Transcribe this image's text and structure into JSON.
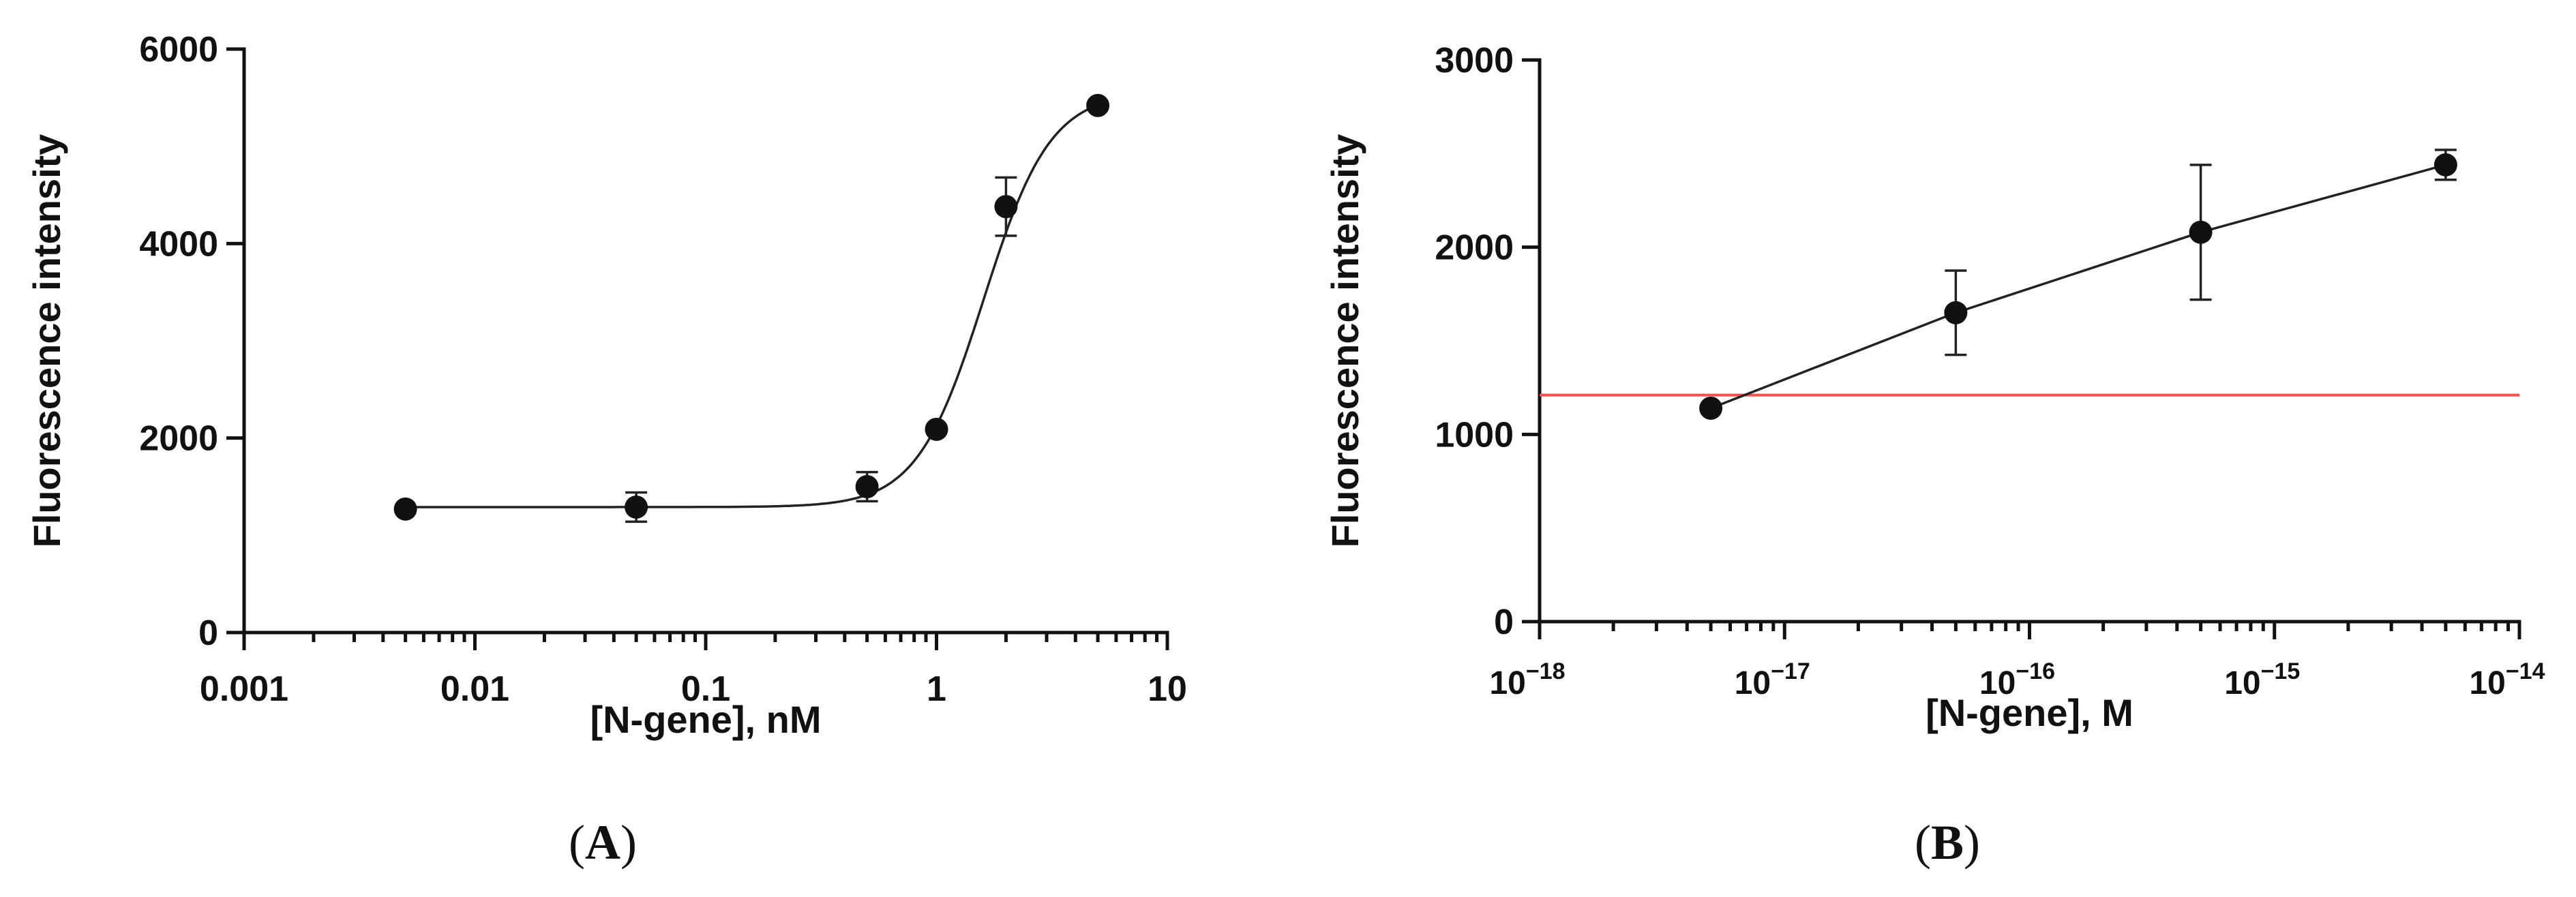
{
  "chart_data": [
    {
      "panel_label": "A",
      "type": "scatter",
      "fit": "sigmoidal",
      "xlabel": "[N-gene], nM",
      "ylabel": "Fluorescence intensity",
      "x_scale": "log",
      "xlim": [
        0.001,
        10
      ],
      "ylim": [
        0,
        6000
      ],
      "x_ticks": [
        0.001,
        0.01,
        0.1,
        1,
        10
      ],
      "x_tick_labels": [
        "0.001",
        "0.01",
        "0.1",
        "1",
        "10"
      ],
      "y_ticks": [
        0,
        2000,
        4000,
        6000
      ],
      "y_tick_labels": [
        "0",
        "2000",
        "4000",
        "6000"
      ],
      "points": [
        {
          "x": 0.005,
          "y": 1270,
          "err": 0
        },
        {
          "x": 0.05,
          "y": 1290,
          "err": 150
        },
        {
          "x": 0.5,
          "y": 1500,
          "err": 150
        },
        {
          "x": 1,
          "y": 2090,
          "err": 0
        },
        {
          "x": 2,
          "y": 4380,
          "err": 300
        },
        {
          "x": 5,
          "y": 5420,
          "err": 0
        }
      ],
      "fit_params": {
        "bottom": 1290,
        "top": 5560,
        "ec50": 1.6,
        "hill": 3
      }
    },
    {
      "panel_label": "B",
      "type": "line",
      "xlabel": "[N-gene], M",
      "ylabel": "Fluorescence intensity",
      "x_scale": "log",
      "xlim": [
        1e-18,
        1e-14
      ],
      "ylim": [
        0,
        3000
      ],
      "x_ticks": [
        1e-18,
        1e-17,
        1e-16,
        1e-15,
        1e-14
      ],
      "x_tick_labels": [
        {
          "base": "10",
          "exp": "−18"
        },
        {
          "base": "10",
          "exp": "−17"
        },
        {
          "base": "10",
          "exp": "−16"
        },
        {
          "base": "10",
          "exp": "−15"
        },
        {
          "base": "10",
          "exp": "−14"
        }
      ],
      "y_ticks": [
        0,
        1000,
        2000,
        3000
      ],
      "y_tick_labels": [
        "0",
        "1000",
        "2000",
        "3000"
      ],
      "points": [
        {
          "x": 5e-18,
          "y": 1140,
          "err": 0
        },
        {
          "x": 5e-17,
          "y": 1650,
          "err": 225
        },
        {
          "x": 5e-16,
          "y": 2080,
          "err": 360
        },
        {
          "x": 5e-15,
          "y": 2440,
          "err": 80
        }
      ],
      "threshold": {
        "y": 1210,
        "color": "#ff4d4d"
      }
    }
  ]
}
